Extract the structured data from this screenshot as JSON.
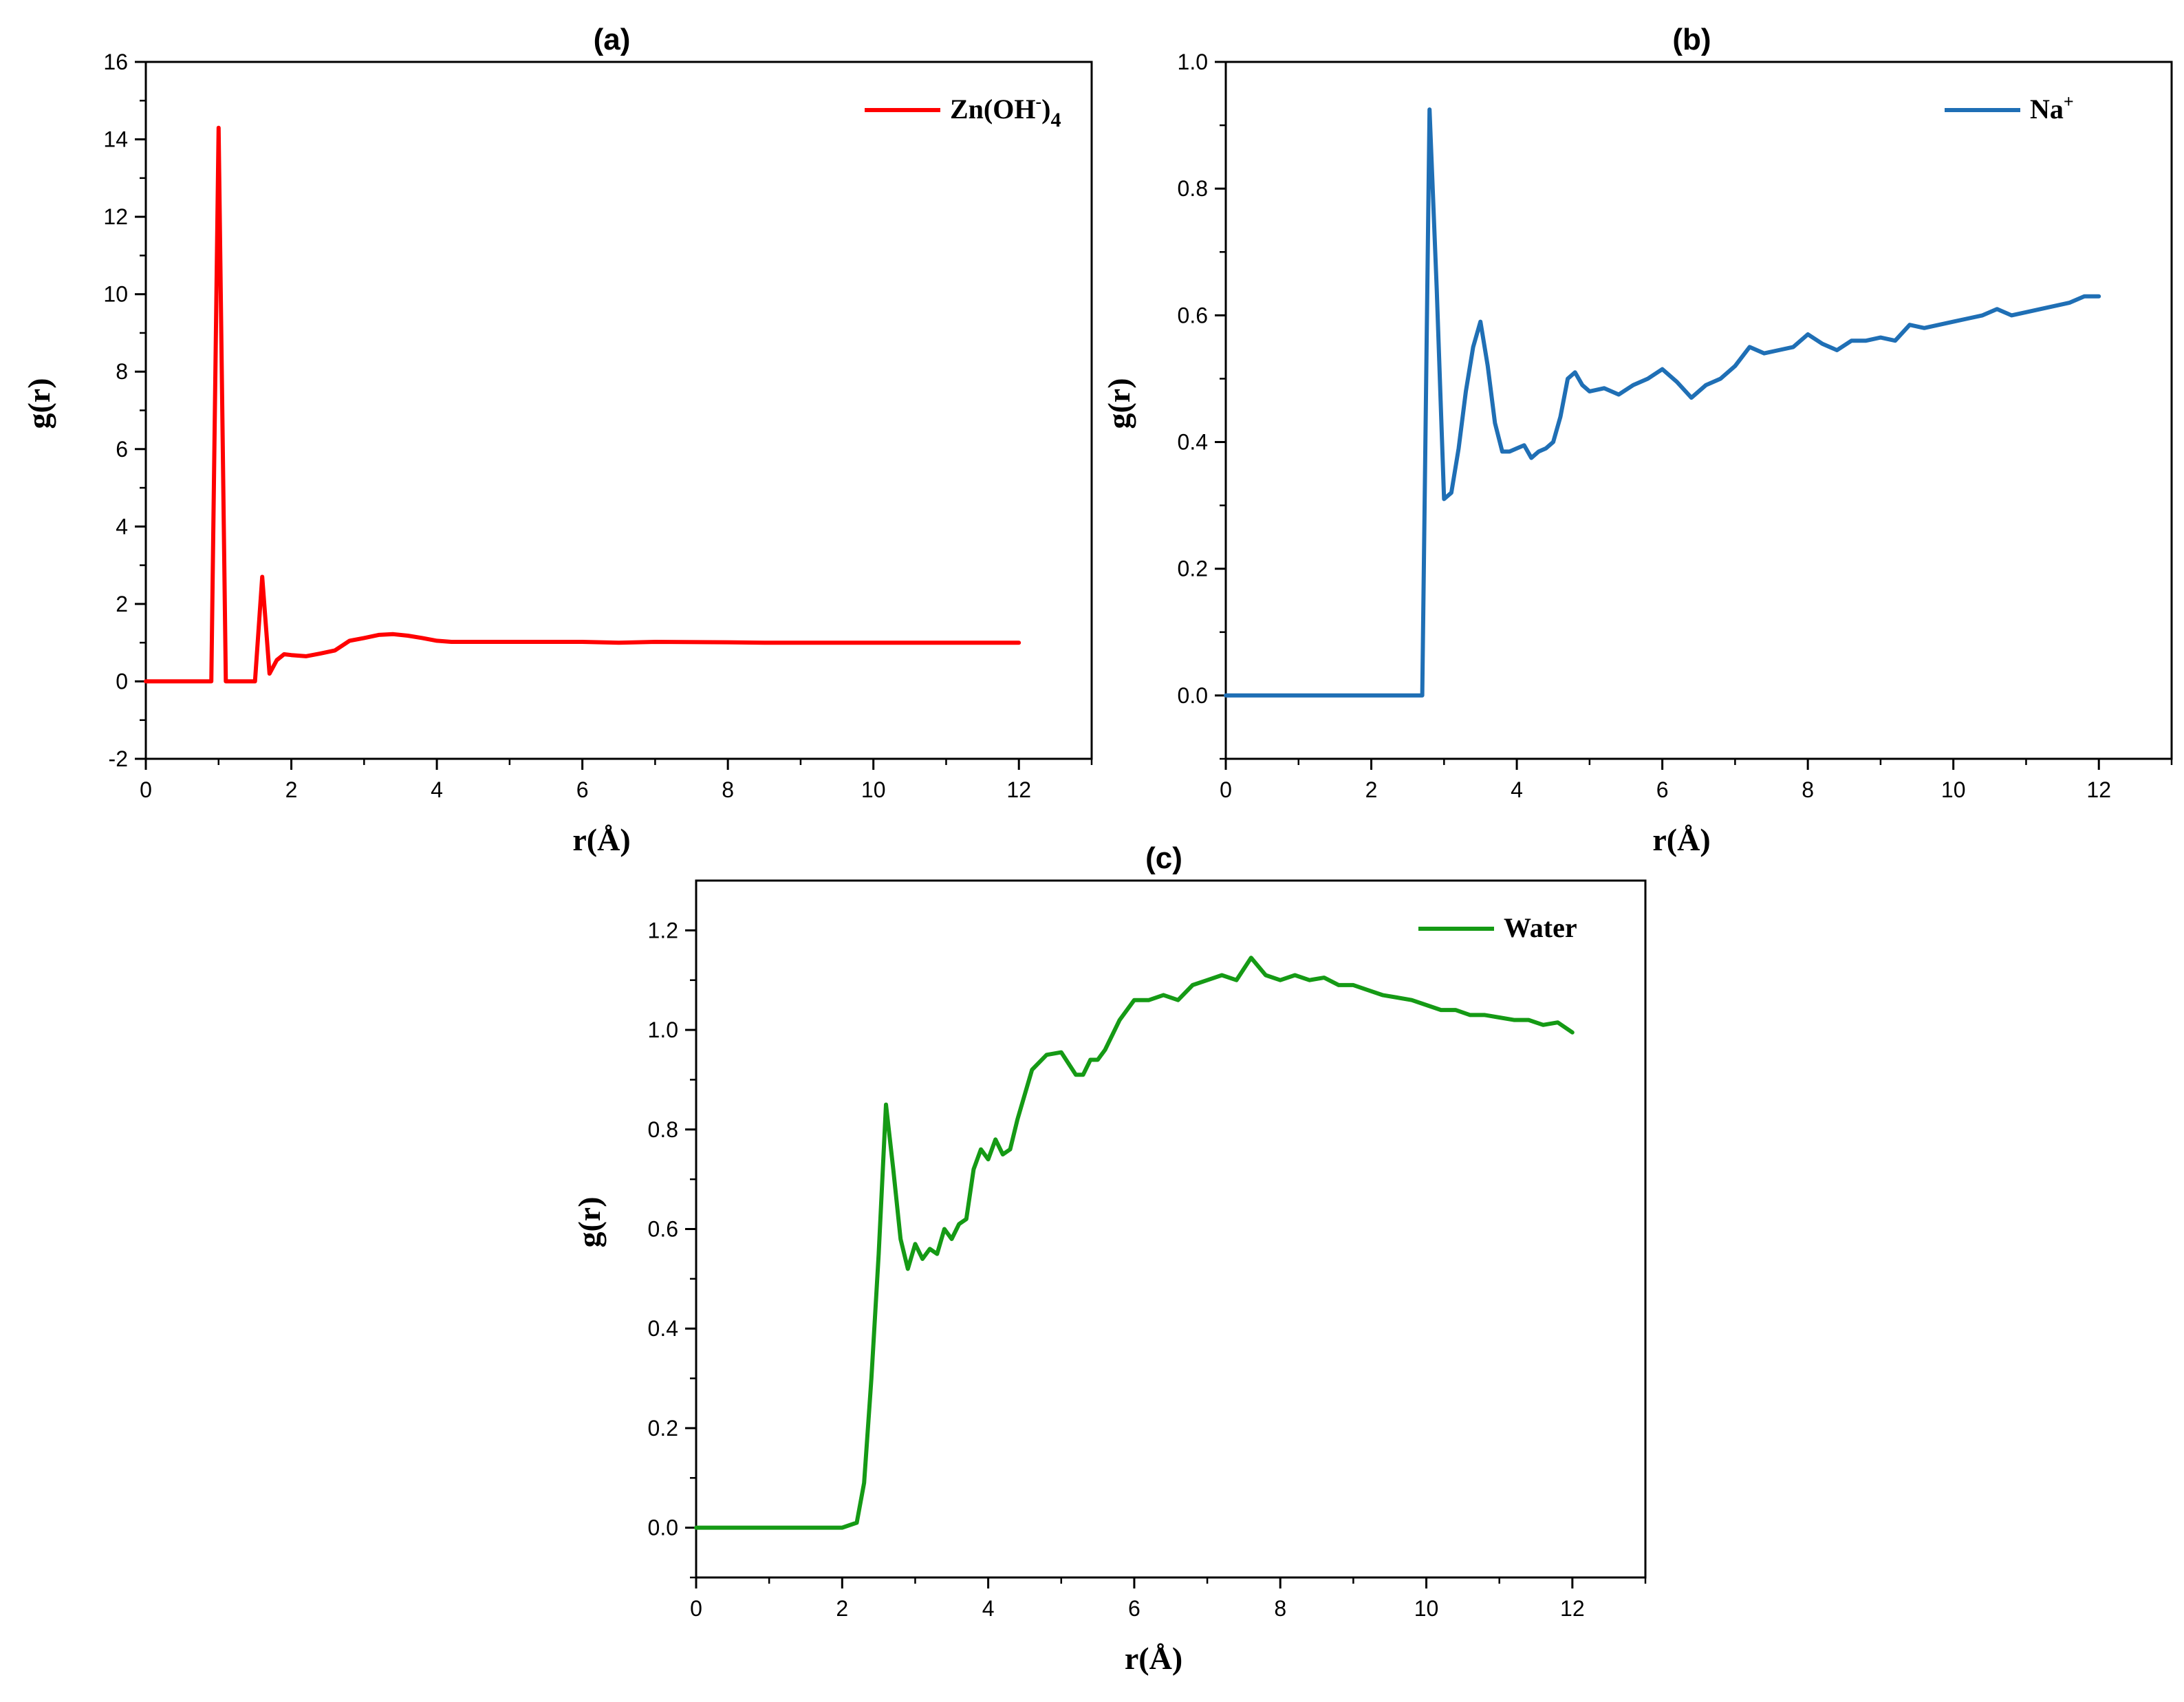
{
  "chart_data": [
    {
      "id": "a",
      "type": "line",
      "title": "(a)",
      "xlabel": "r(Å)",
      "ylabel": "g(r)",
      "xlim": [
        0,
        13
      ],
      "ylim": [
        -2,
        16
      ],
      "xticks": [
        0,
        2,
        4,
        6,
        8,
        10,
        12
      ],
      "yticks": [
        -2,
        0,
        2,
        4,
        6,
        8,
        10,
        12,
        14,
        16
      ],
      "tick_labels_x": [
        "0",
        "2",
        "4",
        "6",
        "8",
        "10",
        "12"
      ],
      "tick_labels_y": [
        "-2",
        "0",
        "2",
        "4",
        "6",
        "8",
        "10",
        "12",
        "14",
        "16"
      ],
      "legend_position": "top-right",
      "series": [
        {
          "name": "Zn(OH)4",
          "legend_parts": {
            "base": "Zn(OH",
            "sup": "-",
            "close": ")",
            "sub": "4"
          },
          "color": "#ff0000",
          "x": [
            0,
            0.9,
            1.0,
            1.1,
            1.5,
            1.6,
            1.7,
            1.8,
            1.9,
            2.0,
            2.2,
            2.4,
            2.6,
            2.8,
            3.0,
            3.2,
            3.4,
            3.6,
            3.8,
            4.0,
            4.2,
            5.0,
            6.0,
            6.5,
            7.0,
            8.0,
            8.5,
            9.0,
            10.0,
            11.0,
            12.0
          ],
          "y": [
            0,
            0,
            14.3,
            0,
            0,
            2.7,
            0.2,
            0.55,
            0.7,
            0.68,
            0.65,
            0.72,
            0.8,
            1.05,
            1.12,
            1.2,
            1.22,
            1.18,
            1.12,
            1.05,
            1.02,
            1.02,
            1.02,
            1.0,
            1.02,
            1.01,
            1.0,
            1.0,
            1.0,
            1.0,
            1.0
          ]
        }
      ]
    },
    {
      "id": "b",
      "type": "line",
      "title": "(b)",
      "xlabel": "r(Å)",
      "ylabel": "g(r)",
      "xlim": [
        0,
        13
      ],
      "ylim": [
        -0.1,
        1.0
      ],
      "xticks": [
        0,
        2,
        4,
        6,
        8,
        10,
        12
      ],
      "yticks": [
        0.0,
        0.2,
        0.4,
        0.6,
        0.8,
        1.0
      ],
      "tick_labels_x": [
        "0",
        "2",
        "4",
        "6",
        "8",
        "10",
        "12"
      ],
      "tick_labels_y": [
        "0.0",
        "0.2",
        "0.4",
        "0.6",
        "0.8",
        "1.0"
      ],
      "legend_position": "top-right",
      "series": [
        {
          "name": "Na+",
          "legend_parts": {
            "base": "Na",
            "sup": "+"
          },
          "color": "#1f6fb5",
          "x": [
            0,
            2.7,
            2.8,
            2.9,
            3.0,
            3.1,
            3.2,
            3.3,
            3.4,
            3.5,
            3.6,
            3.7,
            3.8,
            3.9,
            4.0,
            4.1,
            4.2,
            4.3,
            4.4,
            4.5,
            4.6,
            4.7,
            4.8,
            4.9,
            5.0,
            5.2,
            5.4,
            5.6,
            5.8,
            6.0,
            6.2,
            6.4,
            6.6,
            6.8,
            7.0,
            7.2,
            7.4,
            7.6,
            7.8,
            8.0,
            8.2,
            8.4,
            8.6,
            8.8,
            9.0,
            9.2,
            9.4,
            9.6,
            9.8,
            10.0,
            10.2,
            10.4,
            10.6,
            10.8,
            11.0,
            11.2,
            11.4,
            11.6,
            11.8,
            12.0
          ],
          "y": [
            0,
            0,
            0.925,
            0.64,
            0.31,
            0.32,
            0.39,
            0.48,
            0.55,
            0.59,
            0.52,
            0.43,
            0.385,
            0.385,
            0.39,
            0.395,
            0.375,
            0.385,
            0.39,
            0.4,
            0.44,
            0.5,
            0.51,
            0.49,
            0.48,
            0.485,
            0.475,
            0.49,
            0.5,
            0.515,
            0.495,
            0.47,
            0.49,
            0.5,
            0.52,
            0.55,
            0.54,
            0.545,
            0.55,
            0.57,
            0.555,
            0.545,
            0.56,
            0.56,
            0.565,
            0.56,
            0.585,
            0.58,
            0.585,
            0.59,
            0.595,
            0.6,
            0.61,
            0.6,
            0.605,
            0.61,
            0.615,
            0.62,
            0.63,
            0.63
          ]
        }
      ]
    },
    {
      "id": "c",
      "type": "line",
      "title": "(c)",
      "xlabel": "r(Å)",
      "ylabel": "g(r)",
      "xlim": [
        0,
        13
      ],
      "ylim": [
        -0.1,
        1.3
      ],
      "xticks": [
        0,
        2,
        4,
        6,
        8,
        10,
        12
      ],
      "yticks": [
        0.0,
        0.2,
        0.4,
        0.6,
        0.8,
        1.0,
        1.2
      ],
      "tick_labels_x": [
        "0",
        "2",
        "4",
        "6",
        "8",
        "10",
        "12"
      ],
      "tick_labels_y": [
        "0.0",
        "0.2",
        "0.4",
        "0.6",
        "0.8",
        "1.0",
        "1.2"
      ],
      "legend_position": "top-right",
      "series": [
        {
          "name": "Water",
          "legend_parts": {
            "base": "Water"
          },
          "color": "#159a15",
          "x": [
            0,
            2.0,
            2.2,
            2.3,
            2.4,
            2.5,
            2.6,
            2.7,
            2.8,
            2.9,
            3.0,
            3.1,
            3.2,
            3.3,
            3.4,
            3.5,
            3.6,
            3.7,
            3.8,
            3.9,
            4.0,
            4.1,
            4.2,
            4.3,
            4.4,
            4.6,
            4.8,
            5.0,
            5.2,
            5.3,
            5.4,
            5.5,
            5.6,
            5.8,
            6.0,
            6.2,
            6.4,
            6.6,
            6.8,
            7.0,
            7.2,
            7.4,
            7.6,
            7.8,
            8.0,
            8.2,
            8.4,
            8.6,
            8.8,
            9.0,
            9.2,
            9.4,
            9.6,
            9.8,
            10.0,
            10.2,
            10.4,
            10.6,
            10.8,
            11.0,
            11.2,
            11.4,
            11.6,
            11.8,
            12.0
          ],
          "y": [
            0,
            0,
            0.01,
            0.09,
            0.3,
            0.55,
            0.85,
            0.72,
            0.58,
            0.52,
            0.57,
            0.54,
            0.56,
            0.55,
            0.6,
            0.58,
            0.61,
            0.62,
            0.72,
            0.76,
            0.74,
            0.78,
            0.75,
            0.76,
            0.82,
            0.92,
            0.95,
            0.955,
            0.91,
            0.91,
            0.94,
            0.94,
            0.96,
            1.02,
            1.06,
            1.06,
            1.07,
            1.06,
            1.09,
            1.1,
            1.11,
            1.1,
            1.145,
            1.11,
            1.1,
            1.11,
            1.1,
            1.105,
            1.09,
            1.09,
            1.08,
            1.07,
            1.065,
            1.06,
            1.05,
            1.04,
            1.04,
            1.03,
            1.03,
            1.025,
            1.02,
            1.02,
            1.01,
            1.015,
            0.995
          ]
        }
      ]
    }
  ]
}
